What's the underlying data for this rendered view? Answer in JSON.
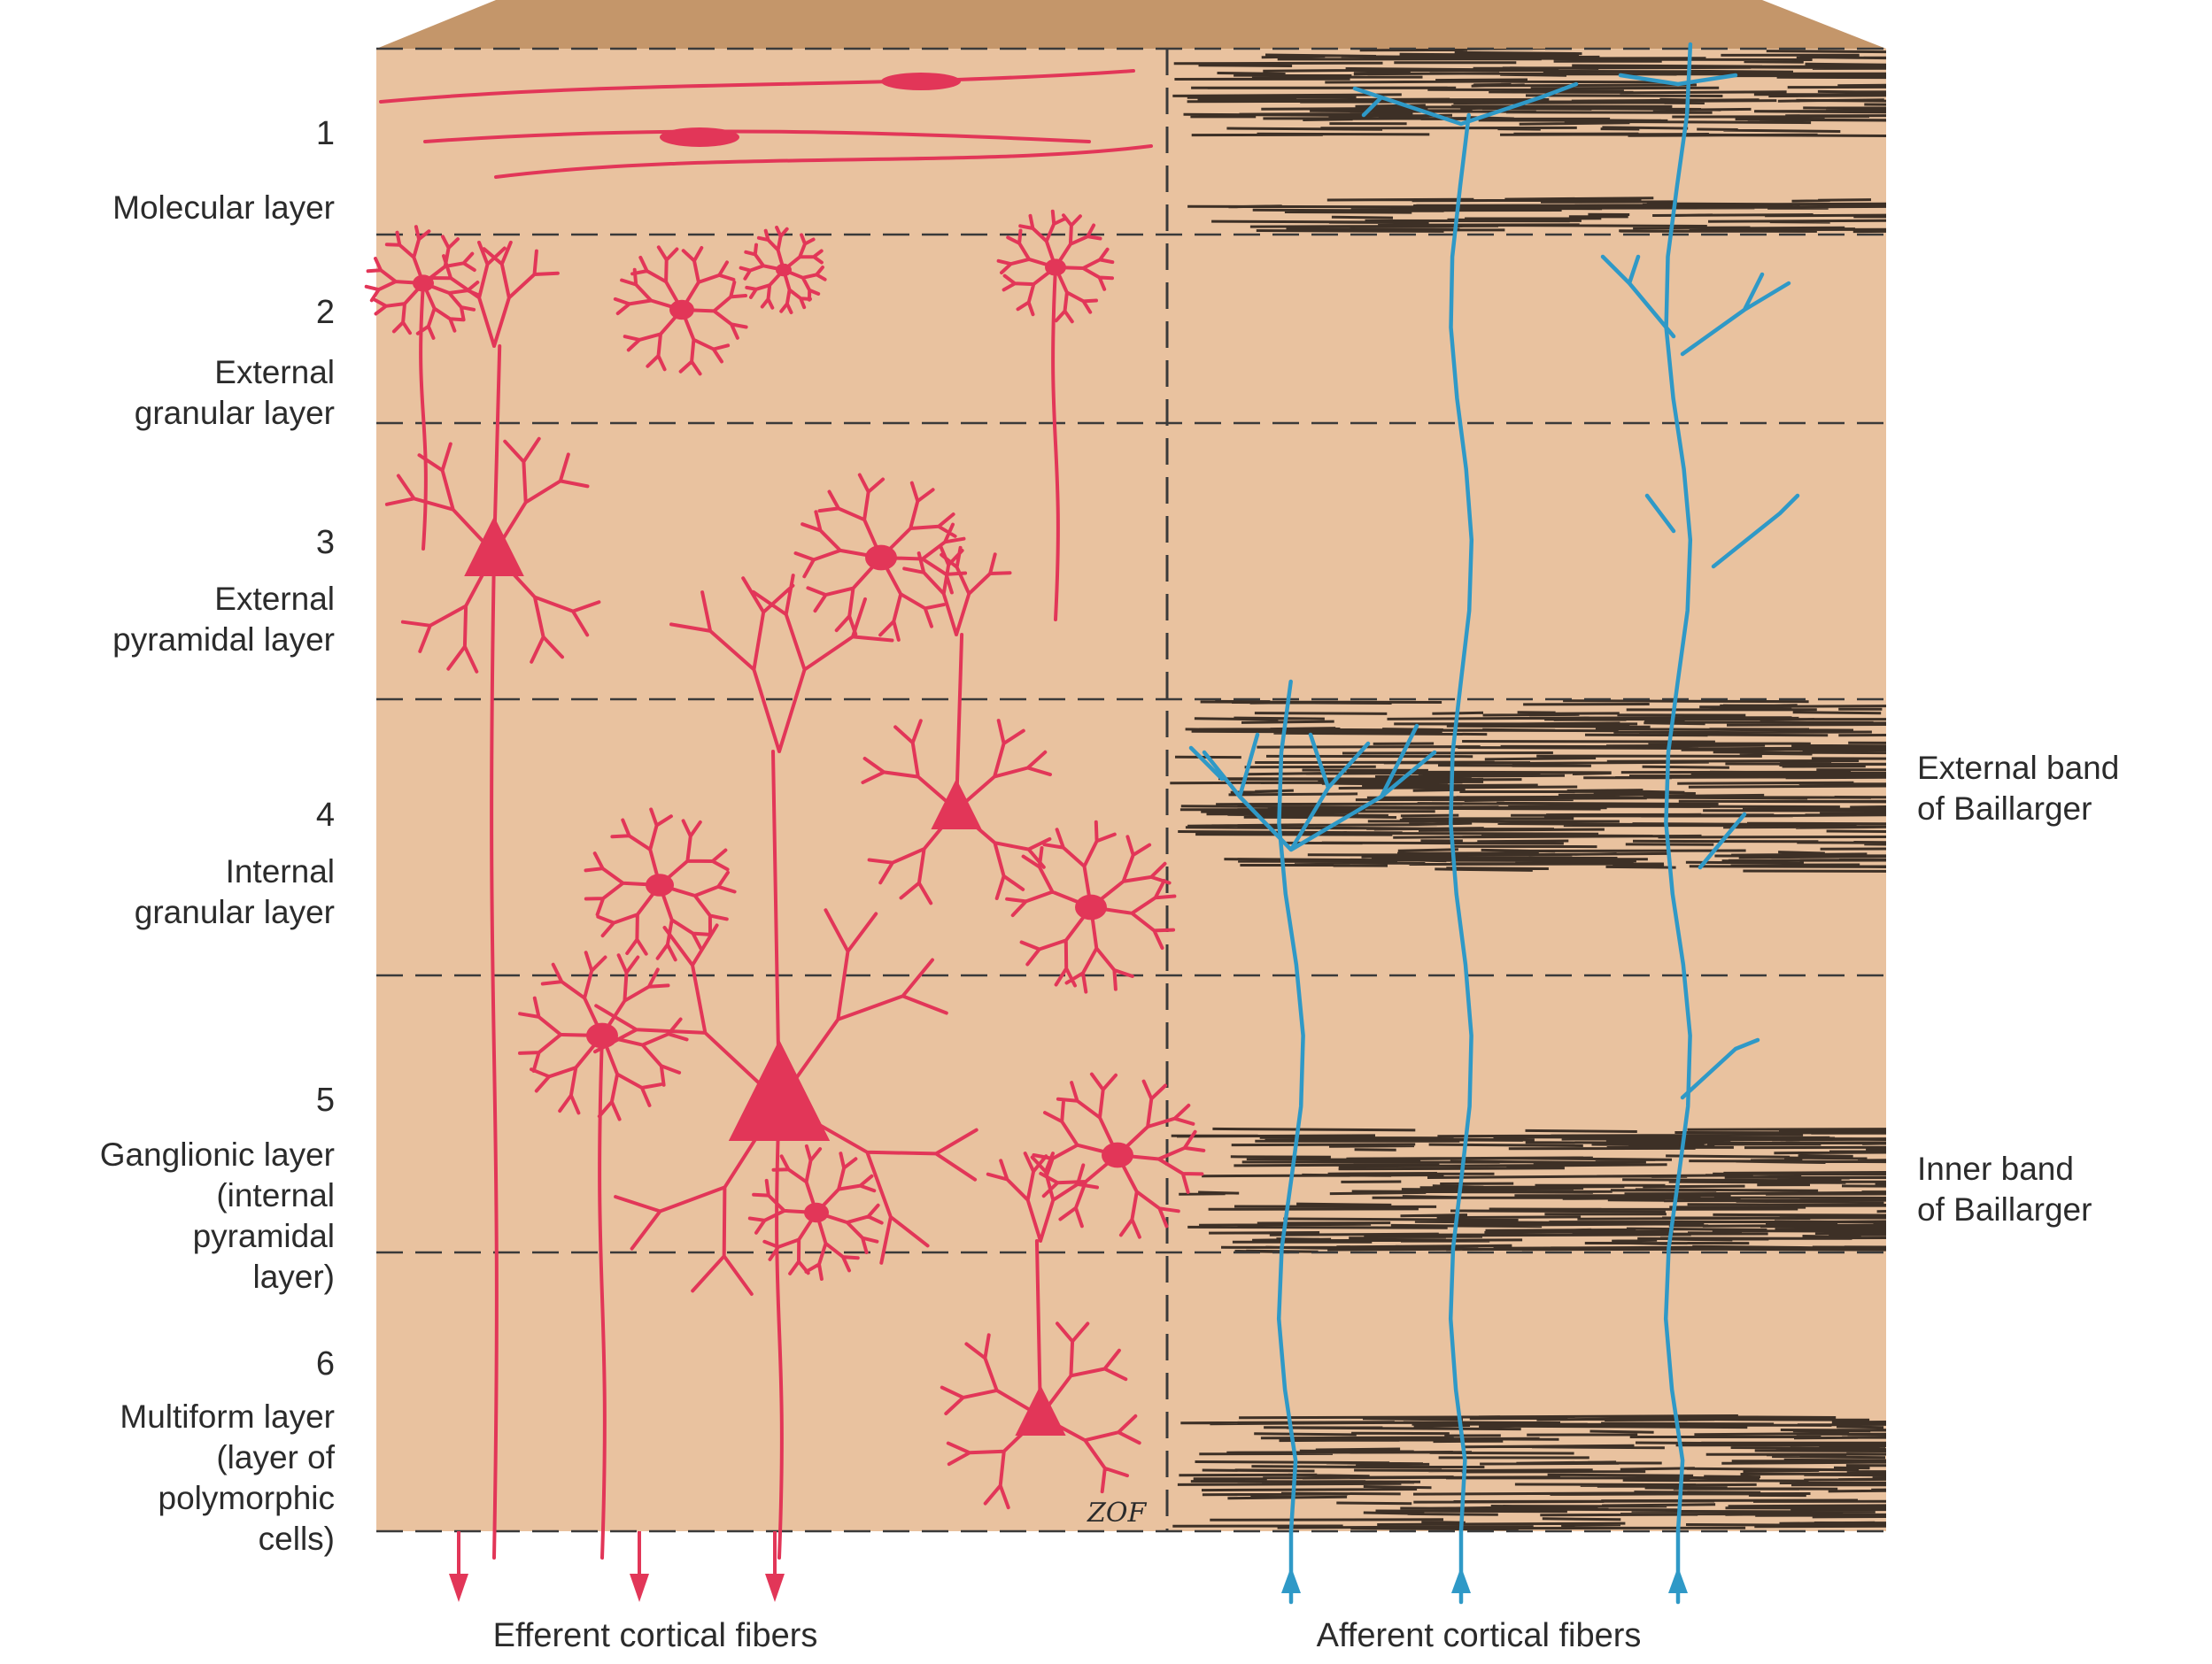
{
  "layers": [
    {
      "number": "1",
      "name_lines": [
        "Molecular layer"
      ]
    },
    {
      "number": "2",
      "name_lines": [
        "External",
        "granular layer"
      ]
    },
    {
      "number": "3",
      "name_lines": [
        "External",
        "pyramidal layer"
      ]
    },
    {
      "number": "4",
      "name_lines": [
        "Internal",
        "granular layer"
      ]
    },
    {
      "number": "5",
      "name_lines": [
        "Ganglionic layer",
        "(internal",
        "pyramidal",
        "layer)"
      ]
    },
    {
      "number": "6",
      "name_lines": [
        "Multiform layer",
        "(layer of",
        "polymorphic",
        "cells)"
      ]
    }
  ],
  "bands": [
    {
      "name_lines": [
        "External band",
        "of Baillarger"
      ]
    },
    {
      "name_lines": [
        "Inner band",
        "of Baillarger"
      ]
    }
  ],
  "fibers": {
    "efferent": "Efferent cortical fibers",
    "afferent": "Afferent cortical fibers"
  },
  "signature": "ZOF",
  "colors": {
    "tissue": "#e9c29f",
    "top_face": "#c4966a",
    "neuron": "#e23658",
    "afferent": "#2f99c7",
    "band": "#1e1611"
  }
}
